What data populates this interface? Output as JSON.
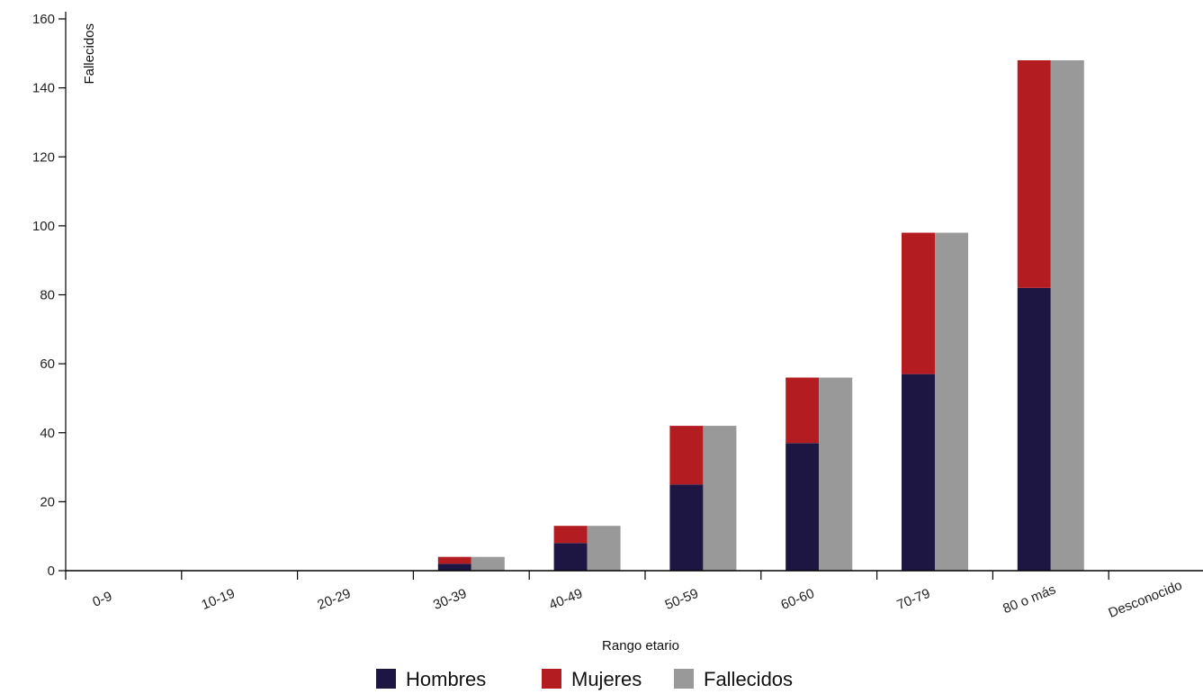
{
  "chart_data": {
    "type": "bar",
    "stacked": true,
    "categories": [
      "0-9",
      "10-19",
      "20-29",
      "30-39",
      "40-49",
      "50-59",
      "60-60",
      "70-79",
      "80 o más",
      "Desconocido"
    ],
    "series": [
      {
        "name": "Hombres",
        "color": "#1d1542",
        "stack": "sexo",
        "values": [
          0,
          0,
          0,
          2,
          8,
          25,
          37,
          57,
          82,
          0
        ]
      },
      {
        "name": "Mujeres",
        "color": "#b31d22",
        "stack": "sexo",
        "values": [
          0,
          0,
          0,
          2,
          5,
          17,
          19,
          41,
          66,
          0
        ]
      },
      {
        "name": "Fallecidos",
        "color": "#999999",
        "stack": "total",
        "values": [
          0,
          0,
          0,
          4,
          13,
          42,
          56,
          98,
          148,
          0
        ]
      }
    ],
    "xlabel": "Rango etario",
    "ylabel": "Fallecidos",
    "ylim": [
      0,
      160
    ],
    "yticks": [
      "0",
      "20",
      "40",
      "60",
      "80",
      "100",
      "120",
      "140",
      "160"
    ],
    "grid": false,
    "legend_position": "bottom-center"
  }
}
